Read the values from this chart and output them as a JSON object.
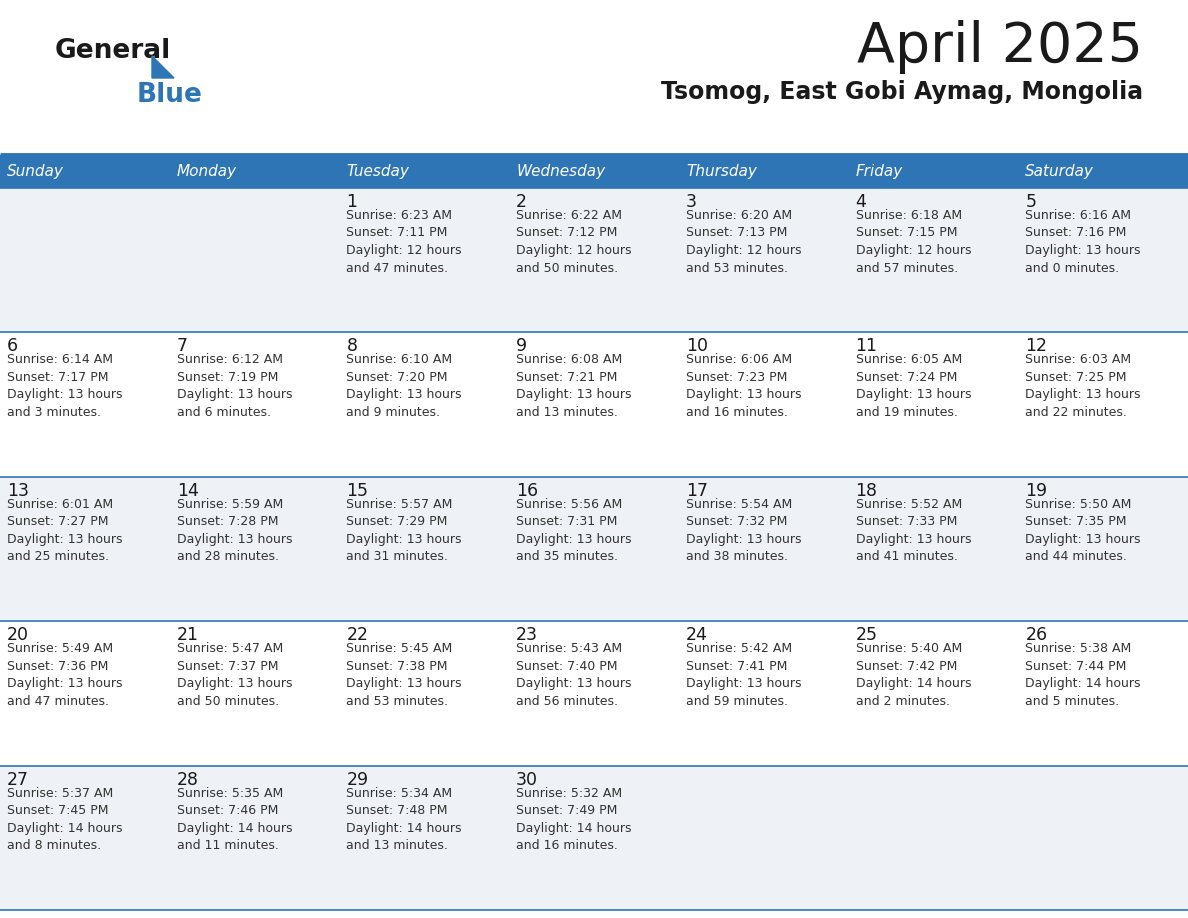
{
  "title": "April 2025",
  "subtitle": "Tsomog, East Gobi Aymag, Mongolia",
  "header_bg": "#2E75B6",
  "header_text": "#FFFFFF",
  "row_bg_even": "#EEF2F7",
  "row_bg_odd": "#FFFFFF",
  "day_names": [
    "Sunday",
    "Monday",
    "Tuesday",
    "Wednesday",
    "Thursday",
    "Friday",
    "Saturday"
  ],
  "calendar": [
    [
      {
        "day": "",
        "info": ""
      },
      {
        "day": "",
        "info": ""
      },
      {
        "day": "1",
        "info": "Sunrise: 6:23 AM\nSunset: 7:11 PM\nDaylight: 12 hours\nand 47 minutes."
      },
      {
        "day": "2",
        "info": "Sunrise: 6:22 AM\nSunset: 7:12 PM\nDaylight: 12 hours\nand 50 minutes."
      },
      {
        "day": "3",
        "info": "Sunrise: 6:20 AM\nSunset: 7:13 PM\nDaylight: 12 hours\nand 53 minutes."
      },
      {
        "day": "4",
        "info": "Sunrise: 6:18 AM\nSunset: 7:15 PM\nDaylight: 12 hours\nand 57 minutes."
      },
      {
        "day": "5",
        "info": "Sunrise: 6:16 AM\nSunset: 7:16 PM\nDaylight: 13 hours\nand 0 minutes."
      }
    ],
    [
      {
        "day": "6",
        "info": "Sunrise: 6:14 AM\nSunset: 7:17 PM\nDaylight: 13 hours\nand 3 minutes."
      },
      {
        "day": "7",
        "info": "Sunrise: 6:12 AM\nSunset: 7:19 PM\nDaylight: 13 hours\nand 6 minutes."
      },
      {
        "day": "8",
        "info": "Sunrise: 6:10 AM\nSunset: 7:20 PM\nDaylight: 13 hours\nand 9 minutes."
      },
      {
        "day": "9",
        "info": "Sunrise: 6:08 AM\nSunset: 7:21 PM\nDaylight: 13 hours\nand 13 minutes."
      },
      {
        "day": "10",
        "info": "Sunrise: 6:06 AM\nSunset: 7:23 PM\nDaylight: 13 hours\nand 16 minutes."
      },
      {
        "day": "11",
        "info": "Sunrise: 6:05 AM\nSunset: 7:24 PM\nDaylight: 13 hours\nand 19 minutes."
      },
      {
        "day": "12",
        "info": "Sunrise: 6:03 AM\nSunset: 7:25 PM\nDaylight: 13 hours\nand 22 minutes."
      }
    ],
    [
      {
        "day": "13",
        "info": "Sunrise: 6:01 AM\nSunset: 7:27 PM\nDaylight: 13 hours\nand 25 minutes."
      },
      {
        "day": "14",
        "info": "Sunrise: 5:59 AM\nSunset: 7:28 PM\nDaylight: 13 hours\nand 28 minutes."
      },
      {
        "day": "15",
        "info": "Sunrise: 5:57 AM\nSunset: 7:29 PM\nDaylight: 13 hours\nand 31 minutes."
      },
      {
        "day": "16",
        "info": "Sunrise: 5:56 AM\nSunset: 7:31 PM\nDaylight: 13 hours\nand 35 minutes."
      },
      {
        "day": "17",
        "info": "Sunrise: 5:54 AM\nSunset: 7:32 PM\nDaylight: 13 hours\nand 38 minutes."
      },
      {
        "day": "18",
        "info": "Sunrise: 5:52 AM\nSunset: 7:33 PM\nDaylight: 13 hours\nand 41 minutes."
      },
      {
        "day": "19",
        "info": "Sunrise: 5:50 AM\nSunset: 7:35 PM\nDaylight: 13 hours\nand 44 minutes."
      }
    ],
    [
      {
        "day": "20",
        "info": "Sunrise: 5:49 AM\nSunset: 7:36 PM\nDaylight: 13 hours\nand 47 minutes."
      },
      {
        "day": "21",
        "info": "Sunrise: 5:47 AM\nSunset: 7:37 PM\nDaylight: 13 hours\nand 50 minutes."
      },
      {
        "day": "22",
        "info": "Sunrise: 5:45 AM\nSunset: 7:38 PM\nDaylight: 13 hours\nand 53 minutes."
      },
      {
        "day": "23",
        "info": "Sunrise: 5:43 AM\nSunset: 7:40 PM\nDaylight: 13 hours\nand 56 minutes."
      },
      {
        "day": "24",
        "info": "Sunrise: 5:42 AM\nSunset: 7:41 PM\nDaylight: 13 hours\nand 59 minutes."
      },
      {
        "day": "25",
        "info": "Sunrise: 5:40 AM\nSunset: 7:42 PM\nDaylight: 14 hours\nand 2 minutes."
      },
      {
        "day": "26",
        "info": "Sunrise: 5:38 AM\nSunset: 7:44 PM\nDaylight: 14 hours\nand 5 minutes."
      }
    ],
    [
      {
        "day": "27",
        "info": "Sunrise: 5:37 AM\nSunset: 7:45 PM\nDaylight: 14 hours\nand 8 minutes."
      },
      {
        "day": "28",
        "info": "Sunrise: 5:35 AM\nSunset: 7:46 PM\nDaylight: 14 hours\nand 11 minutes."
      },
      {
        "day": "29",
        "info": "Sunrise: 5:34 AM\nSunset: 7:48 PM\nDaylight: 14 hours\nand 13 minutes."
      },
      {
        "day": "30",
        "info": "Sunrise: 5:32 AM\nSunset: 7:49 PM\nDaylight: 14 hours\nand 16 minutes."
      },
      {
        "day": "",
        "info": ""
      },
      {
        "day": "",
        "info": ""
      },
      {
        "day": "",
        "info": ""
      }
    ]
  ],
  "logo_text1": "General",
  "logo_text2": "Blue",
  "logo_text1_color": "#1a1a1a",
  "logo_text2_color": "#2E75B6",
  "logo_triangle_color": "#2E75B6",
  "title_color": "#1a1a1a",
  "subtitle_color": "#1a1a1a",
  "divider_color": "#2E75B6",
  "cell_border_color": "#2E75B6",
  "day_number_color": "#1a1a1a",
  "day_info_color": "#333333",
  "fig_width": 11.88,
  "fig_height": 9.18,
  "dpi": 100
}
